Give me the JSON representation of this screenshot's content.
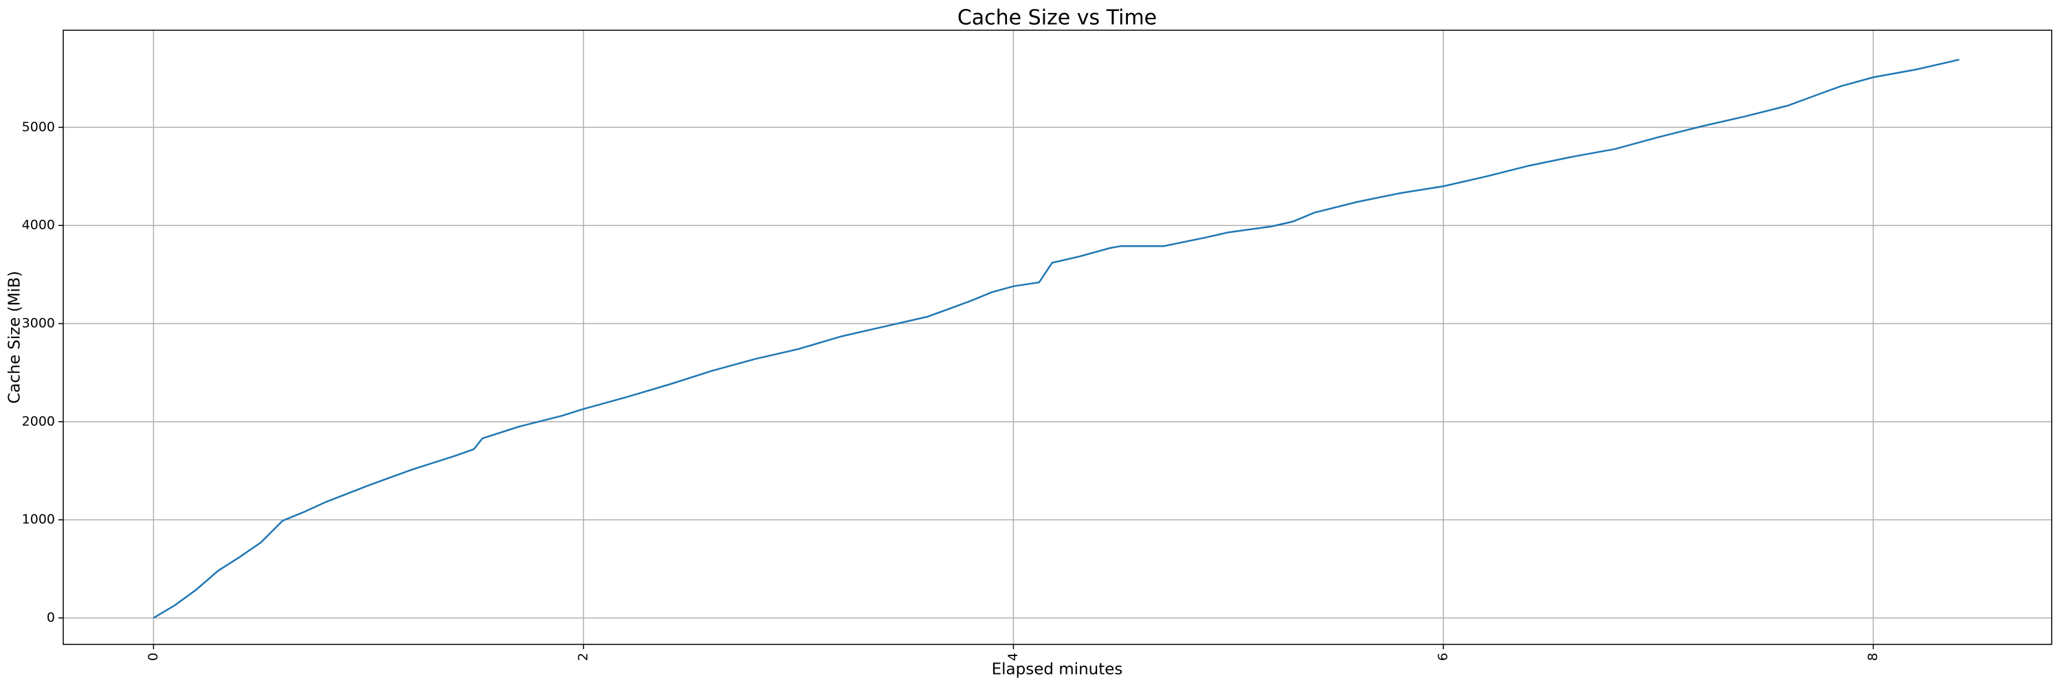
{
  "chart_data": {
    "type": "line",
    "title": "Cache Size vs Time",
    "xlabel": "Elapsed minutes",
    "ylabel": "Cache Size (MiB)",
    "x": [
      0,
      0.1,
      0.2,
      0.3,
      0.4,
      0.5,
      0.55,
      0.6,
      0.7,
      0.8,
      1.0,
      1.2,
      1.4,
      1.49,
      1.53,
      1.7,
      1.9,
      2.0,
      2.2,
      2.4,
      2.6,
      2.8,
      3.0,
      3.2,
      3.4,
      3.6,
      3.8,
      3.9,
      4.0,
      4.12,
      4.18,
      4.3,
      4.45,
      4.5,
      4.7,
      4.9,
      5.0,
      5.2,
      5.3,
      5.4,
      5.6,
      5.8,
      6.0,
      6.2,
      6.4,
      6.6,
      6.8,
      7.0,
      7.2,
      7.4,
      7.6,
      7.7,
      7.85,
      8.0,
      8.2,
      8.4
    ],
    "series": [
      {
        "name": "Cache Size",
        "color": "#1f77b4",
        "values": [
          0,
          130,
          290,
          480,
          620,
          770,
          880,
          990,
          1080,
          1180,
          1350,
          1510,
          1650,
          1720,
          1830,
          1950,
          2060,
          2130,
          2250,
          2380,
          2520,
          2640,
          2740,
          2870,
          2970,
          3070,
          3230,
          3320,
          3380,
          3420,
          3620,
          3680,
          3770,
          3790,
          3790,
          3880,
          3930,
          3990,
          4040,
          4130,
          4240,
          4330,
          4400,
          4500,
          4610,
          4700,
          4780,
          4900,
          5010,
          5110,
          5220,
          5300,
          5420,
          5510,
          5590,
          5690
        ]
      }
    ],
    "xlim": [
      -0.42,
      8.83
    ],
    "xticks": [
      0,
      2,
      4,
      6,
      8
    ],
    "ylim": [
      -270,
      5990
    ],
    "yticks": [
      0,
      1000,
      2000,
      3000,
      4000,
      5000
    ],
    "grid": true
  }
}
